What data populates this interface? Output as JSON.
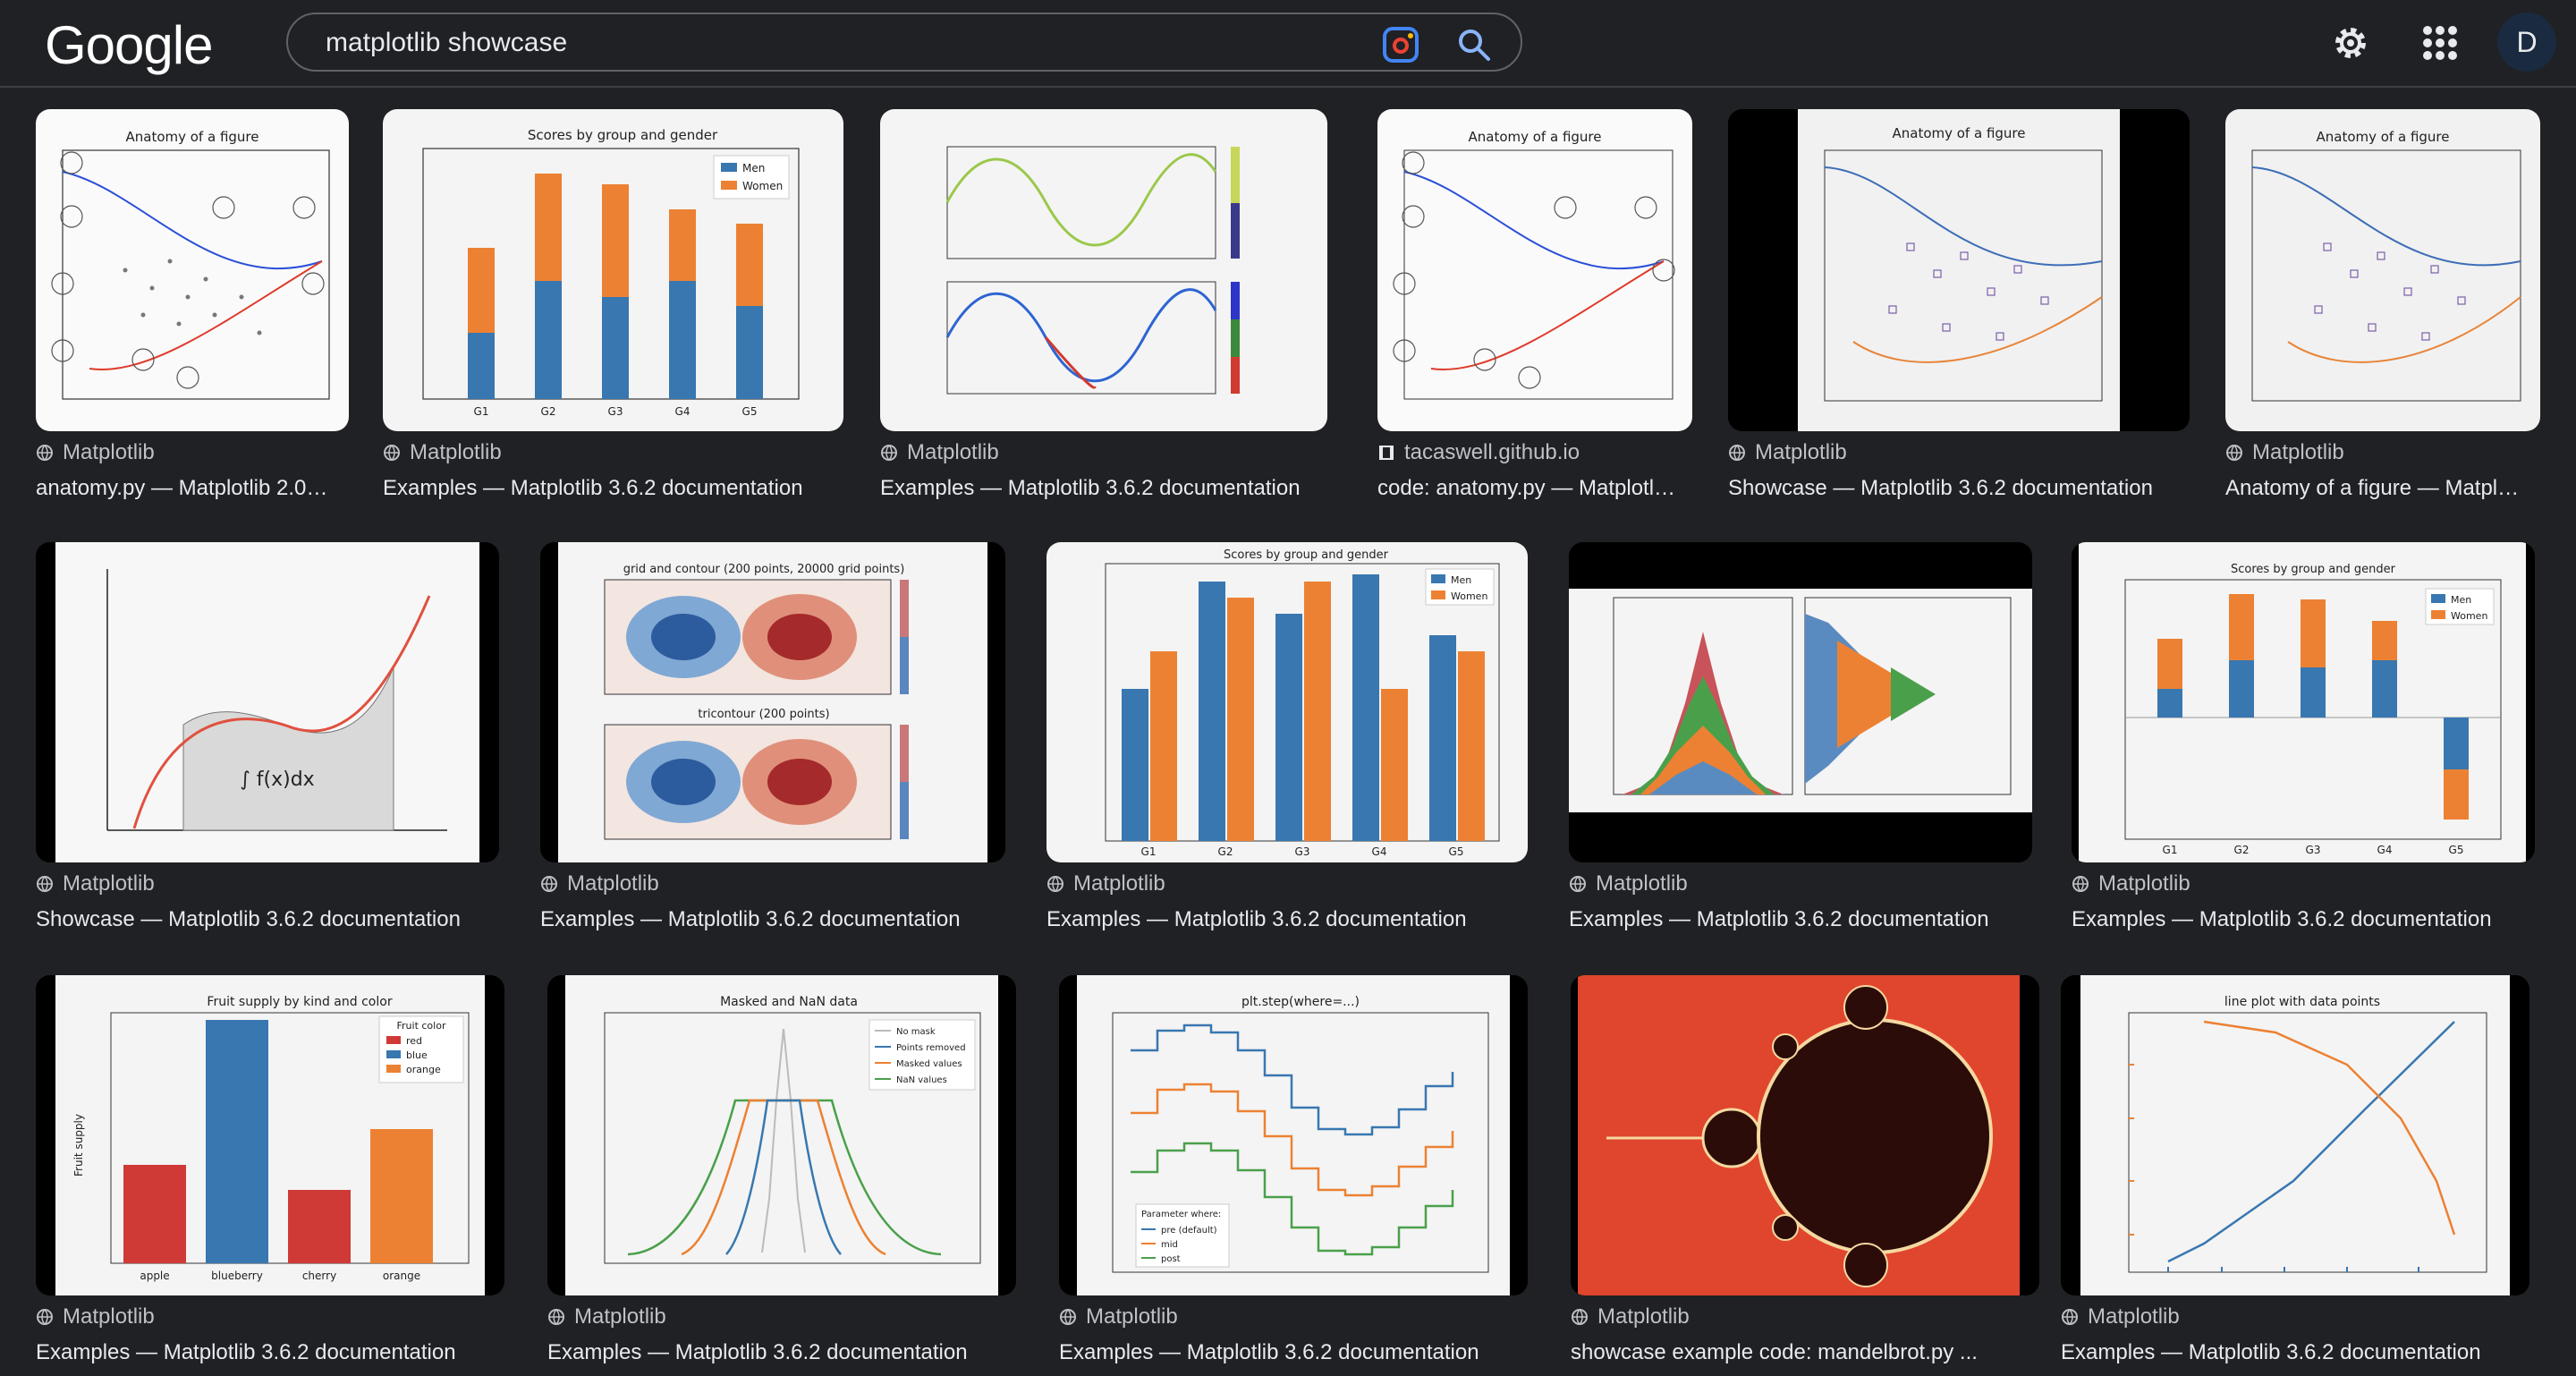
{
  "header": {
    "logo": "Google",
    "search_value": "matplotlib showcase",
    "avatar_letter": "D"
  },
  "results": [
    {
      "source": "Matplotlib",
      "title": "anatomy.py — Matplotlib 2.0…",
      "thumb_title": "Anatomy of a figure"
    },
    {
      "source": "Matplotlib",
      "title": "Examples — Matplotlib 3.6.2 documentation",
      "thumb_title": "Scores by group and gender"
    },
    {
      "source": "Matplotlib",
      "title": "Examples — Matplotlib 3.6.2 documentation",
      "thumb_title": ""
    },
    {
      "source": "tacaswell.github.io",
      "title": "code: anatomy.py — Matplotl…",
      "thumb_title": "Anatomy of a figure"
    },
    {
      "source": "Matplotlib",
      "title": "Showcase — Matplotlib 3.6.2 documentation",
      "thumb_title": "Anatomy of a figure"
    },
    {
      "source": "Matplotlib",
      "title": "Anatomy of a figure — Matpl…",
      "thumb_title": "Anatomy of a figure"
    },
    {
      "source": "Matplotlib",
      "title": "Showcase — Matplotlib 3.6.2 documentation",
      "thumb_title": ""
    },
    {
      "source": "Matplotlib",
      "title": "Examples — Matplotlib 3.6.2 documentation",
      "thumb_title": "grid and contour (200 points, 20000 grid points)"
    },
    {
      "source": "Matplotlib",
      "title": "Examples — Matplotlib 3.6.2 documentation",
      "thumb_title": "Scores by group and gender"
    },
    {
      "source": "Matplotlib",
      "title": "Examples — Matplotlib 3.6.2 documentation",
      "thumb_title": ""
    },
    {
      "source": "Matplotlib",
      "title": "Examples — Matplotlib 3.6.2 documentation",
      "thumb_title": "Scores by group and gender"
    },
    {
      "source": "Matplotlib",
      "title": "Examples — Matplotlib 3.6.2 documentation",
      "thumb_title": "Fruit supply by kind and color"
    },
    {
      "source": "Matplotlib",
      "title": "Examples — Matplotlib 3.6.2 documentation",
      "thumb_title": "Masked and NaN data"
    },
    {
      "source": "Matplotlib",
      "title": "Examples — Matplotlib 3.6.2 documentation",
      "thumb_title": "plt.step(where=...)"
    },
    {
      "source": "Matplotlib",
      "title": "showcase example code: mandelbrot.py ...",
      "thumb_title": ""
    },
    {
      "source": "Matplotlib",
      "title": "Examples — Matplotlib 3.6.2 documentation",
      "thumb_title": "line plot with data points"
    }
  ],
  "thumb_text": {
    "men": "Men",
    "women": "Women",
    "groups": [
      "G1",
      "G2",
      "G3",
      "G4",
      "G5"
    ],
    "scores": "Scores",
    "integral": "∫ f(x)dx",
    "tricontour": "tricontour (200 points)",
    "fruits": [
      "apple",
      "blueberry",
      "cherry",
      "orange"
    ],
    "fruit_ylabel": "Fruit supply",
    "fruit_legend_title": "Fruit color",
    "fruit_colors": [
      "red",
      "blue",
      "orange"
    ],
    "masked_legend": [
      "No mask",
      "Points removed",
      "Masked values",
      "NaN values"
    ],
    "step_legend_title": "Parameter where:",
    "step_legend": [
      "pre (default)",
      "mid",
      "post"
    ]
  },
  "colors": {
    "mpl_blue": "#3877b0",
    "mpl_orange": "#ec8133",
    "mpl_red": "#d03a36",
    "mpl_green": "#4aa04a",
    "bg": "#202124"
  }
}
